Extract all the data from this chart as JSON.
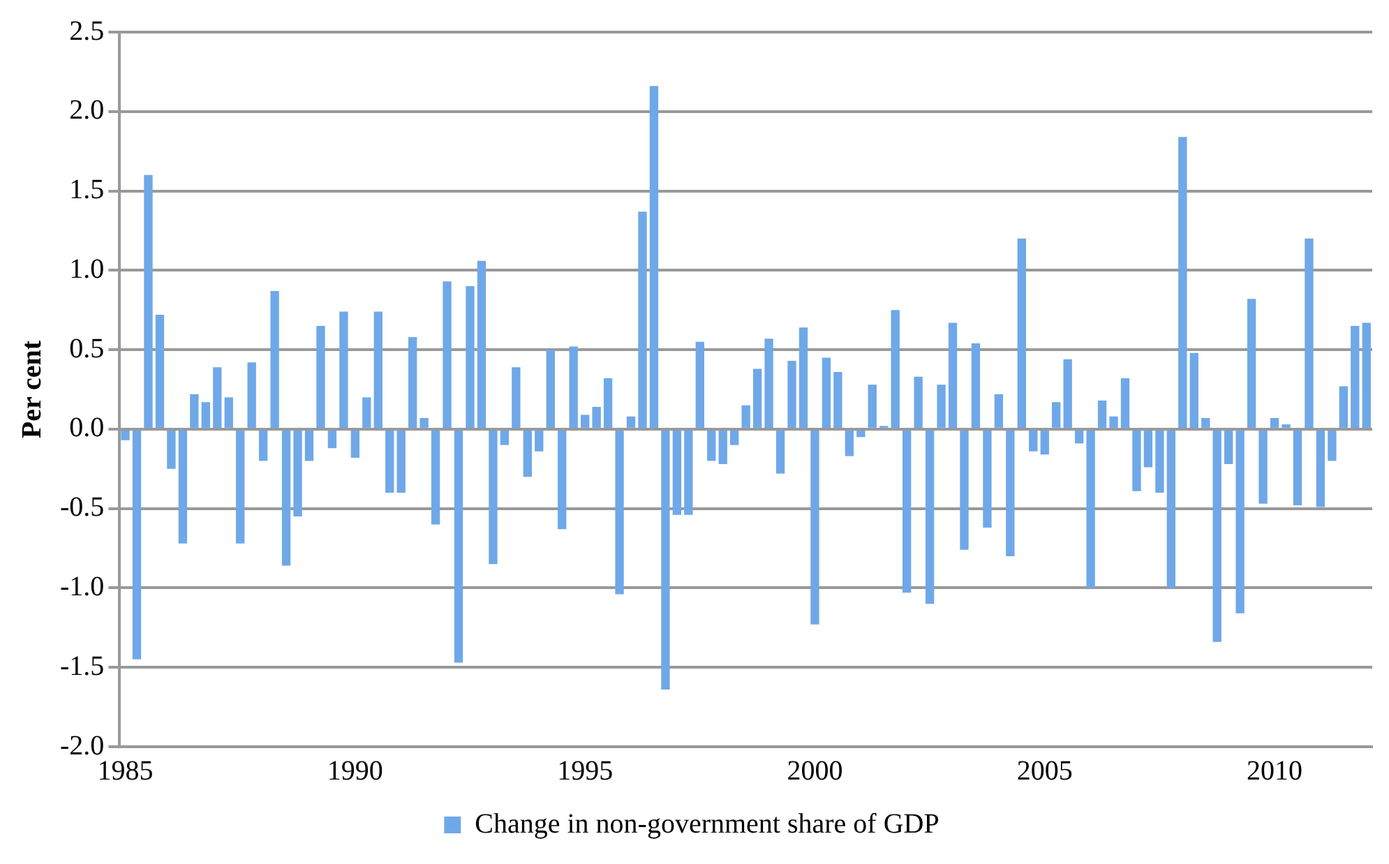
{
  "chart_data": {
    "type": "bar",
    "ylabel": "Per cent",
    "categories": [
      "1985",
      null,
      null,
      null,
      null,
      null,
      null,
      null,
      null,
      null,
      null,
      null,
      null,
      null,
      null,
      null,
      null,
      null,
      null,
      null,
      "1990",
      null,
      null,
      null,
      null,
      null,
      null,
      null,
      null,
      null,
      null,
      null,
      null,
      null,
      null,
      null,
      null,
      null,
      null,
      null,
      "1995",
      null,
      null,
      null,
      null,
      null,
      null,
      null,
      null,
      null,
      null,
      null,
      null,
      null,
      null,
      null,
      null,
      null,
      null,
      null,
      "2000",
      null,
      null,
      null,
      null,
      null,
      null,
      null,
      null,
      null,
      null,
      null,
      null,
      null,
      null,
      null,
      null,
      null,
      null,
      null,
      "2005",
      null,
      null,
      null,
      null,
      null,
      null,
      null,
      null,
      null,
      null,
      null,
      null,
      null,
      null,
      null,
      null,
      null,
      null,
      null,
      "2010",
      null,
      null,
      null,
      null,
      null,
      null,
      null,
      null
    ],
    "series": [
      {
        "name": "Change in non-government share of GDP",
        "color": "#6fa8e8",
        "values": [
          -0.07,
          -1.45,
          1.6,
          0.72,
          -0.25,
          -0.72,
          0.22,
          0.17,
          0.39,
          0.2,
          -0.72,
          0.42,
          -0.2,
          0.87,
          -0.86,
          -0.55,
          -0.2,
          0.65,
          -0.12,
          0.74,
          -0.18,
          0.2,
          0.74,
          -0.4,
          -0.4,
          0.58,
          0.07,
          -0.6,
          0.93,
          -1.47,
          0.9,
          1.06,
          -0.85,
          -0.1,
          0.39,
          -0.3,
          -0.14,
          0.5,
          -0.63,
          0.52,
          0.09,
          0.14,
          0.32,
          -1.04,
          0.08,
          1.37,
          2.16,
          -1.64,
          -0.54,
          -0.54,
          0.55,
          -0.2,
          -0.22,
          -0.1,
          0.15,
          0.38,
          0.57,
          -0.28,
          0.43,
          0.64,
          -1.23,
          0.45,
          0.36,
          -0.17,
          -0.05,
          0.28,
          0.02,
          0.75,
          -1.03,
          0.33,
          -1.1,
          0.28,
          0.67,
          -0.76,
          0.54,
          -0.62,
          0.22,
          -0.8,
          1.2,
          -0.14,
          -0.16,
          0.17,
          0.44,
          -0.09,
          -1.0,
          0.18,
          0.08,
          0.32,
          -0.39,
          -0.24,
          -0.4,
          -1.0,
          1.84,
          0.48,
          0.07,
          -1.34,
          -0.22,
          -1.16,
          0.82,
          -0.47,
          0.07,
          0.03,
          -0.48,
          1.2,
          -0.49,
          -0.2,
          0.27,
          0.65,
          0.67
        ]
      }
    ],
    "ylim": [
      -2.0,
      2.5
    ],
    "yticks": [
      {
        "value": -2,
        "label": "-2.0"
      },
      -1.5,
      {
        "value": -1,
        "label": "-1.0"
      },
      -0.5,
      {
        "value": 0,
        "label": "0.0"
      },
      0.5,
      {
        "value": 1,
        "label": "1.0"
      },
      1.5,
      {
        "value": 2,
        "label": "2.0"
      },
      2.5
    ],
    "grid": "y",
    "legend": "bottom"
  }
}
